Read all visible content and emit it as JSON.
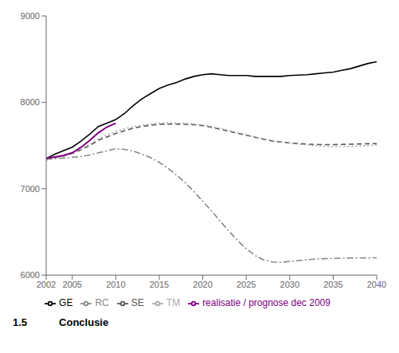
{
  "chart_data": {
    "type": "line",
    "x": [
      2002,
      2003,
      2004,
      2005,
      2006,
      2007,
      2008,
      2009,
      2010,
      2011,
      2012,
      2013,
      2014,
      2015,
      2016,
      2017,
      2018,
      2019,
      2020,
      2021,
      2022,
      2023,
      2024,
      2025,
      2026,
      2027,
      2028,
      2029,
      2030,
      2031,
      2032,
      2033,
      2034,
      2035,
      2036,
      2037,
      2038,
      2039,
      2040
    ],
    "series": [
      {
        "name": "GE",
        "color": "#000000",
        "line_style": "solid",
        "values": [
          7350,
          7400,
          7440,
          7480,
          7550,
          7630,
          7720,
          7760,
          7800,
          7870,
          7960,
          8040,
          8100,
          8160,
          8200,
          8230,
          8270,
          8300,
          8320,
          8330,
          8320,
          8310,
          8310,
          8310,
          8300,
          8300,
          8300,
          8300,
          8310,
          8315,
          8320,
          8330,
          8340,
          8350,
          8370,
          8390,
          8420,
          8450,
          8470
        ]
      },
      {
        "name": "SE",
        "color": "#555555",
        "line_style": "dashed",
        "values": [
          7350,
          7365,
          7380,
          7410,
          7450,
          7500,
          7560,
          7600,
          7640,
          7670,
          7700,
          7720,
          7735,
          7745,
          7748,
          7748,
          7745,
          7740,
          7730,
          7710,
          7688,
          7665,
          7642,
          7618,
          7595,
          7572,
          7552,
          7540,
          7530,
          7522,
          7516,
          7512,
          7510,
          7510,
          7512,
          7515,
          7518,
          7520,
          7522
        ]
      },
      {
        "name": "TM",
        "color": "#aaaaaa",
        "line_style": "dotted",
        "values": [
          7330,
          7352,
          7375,
          7408,
          7455,
          7512,
          7575,
          7625,
          7665,
          7695,
          7718,
          7735,
          7748,
          7758,
          7762,
          7760,
          7755,
          7748,
          7738,
          7720,
          7698,
          7675,
          7650,
          7625,
          7600,
          7578,
          7558,
          7542,
          7528,
          7516,
          7506,
          7498,
          7492,
          7488,
          7487,
          7488,
          7492,
          7498,
          7508
        ]
      },
      {
        "name": "RC",
        "color": "#888888",
        "line_style": "dashdot",
        "values": [
          7340,
          7348,
          7355,
          7362,
          7372,
          7390,
          7415,
          7440,
          7462,
          7455,
          7435,
          7400,
          7360,
          7305,
          7235,
          7158,
          7068,
          6965,
          6855,
          6742,
          6625,
          6510,
          6400,
          6305,
          6228,
          6175,
          6152,
          6148,
          6158,
          6168,
          6178,
          6185,
          6190,
          6193,
          6195,
          6197,
          6198,
          6199,
          6200
        ]
      },
      {
        "name": "realisatie / prognose dec 2009",
        "color": "#800080",
        "line_style": "solid",
        "values": [
          7352,
          7368,
          7385,
          7415,
          7478,
          7558,
          7648,
          7715,
          7758,
          null,
          null,
          null,
          null,
          null,
          null,
          null,
          null,
          null,
          null,
          null,
          null,
          null,
          null,
          null,
          null,
          null,
          null,
          null,
          null,
          null,
          null,
          null,
          null,
          null,
          null,
          null,
          null,
          null,
          null
        ]
      }
    ],
    "xlim": [
      2002,
      2040
    ],
    "xticks": [
      2002,
      2005,
      2010,
      2015,
      2020,
      2025,
      2030,
      2035,
      2040
    ],
    "ylim": [
      6000,
      9000
    ],
    "yticks": [
      6000,
      7000,
      8000,
      9000
    ],
    "grid": false,
    "legend": "bottom",
    "annotations": [
      "1.5",
      "Conclusie"
    ]
  }
}
